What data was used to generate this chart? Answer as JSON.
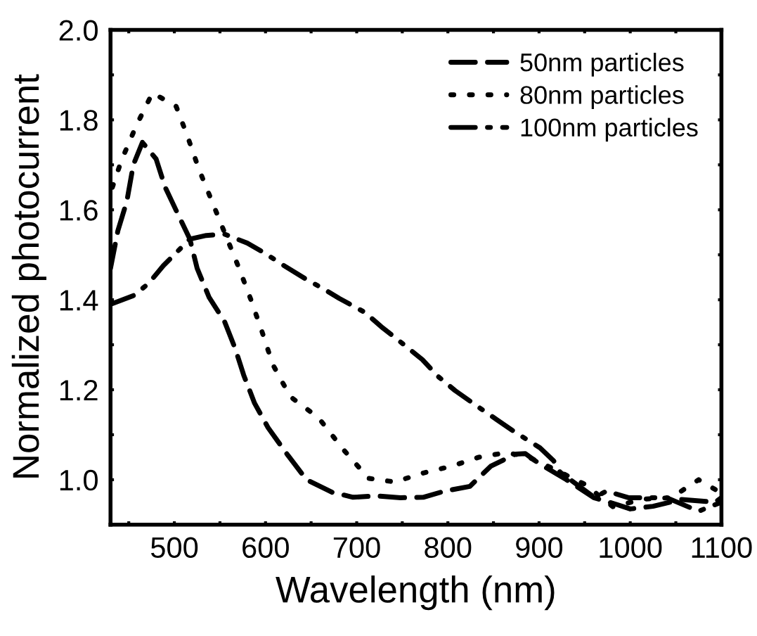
{
  "chart_data": {
    "type": "line",
    "xlabel": "Wavelength (nm)",
    "ylabel": "Normalized photocurrent",
    "xlim": [
      430,
      1100
    ],
    "ylim": [
      0.9,
      2.0
    ],
    "xticks": [
      {
        "value": 450,
        "label": null
      },
      500,
      {
        "value": 550,
        "label": null
      },
      600,
      {
        "value": 650,
        "label": null
      },
      700,
      {
        "value": 750,
        "label": null
      },
      800,
      {
        "value": 850,
        "label": null
      },
      900,
      {
        "value": 950,
        "label": null
      },
      1000,
      {
        "value": 1050,
        "label": null
      },
      1100
    ],
    "yticks": [
      {
        "value": 1.0,
        "label": "1.0"
      },
      {
        "value": 1.1,
        "label": null
      },
      1.2,
      {
        "value": 1.3,
        "label": null
      },
      1.4,
      {
        "value": 1.5,
        "label": null
      },
      1.6,
      {
        "value": 1.7,
        "label": null
      },
      1.8,
      {
        "value": 1.9,
        "label": null
      },
      {
        "value": 2.0,
        "label": "2.0"
      }
    ],
    "legend": "top right",
    "grid": false,
    "series": [
      {
        "name": "50nm particles",
        "color": "#000000",
        "line_style": "dashed",
        "x": [
          430,
          438,
          448,
          455,
          465,
          480,
          490,
          504,
          517,
          525,
          538,
          555,
          567,
          576,
          588,
          603,
          625,
          645,
          673,
          696,
          722,
          748,
          773,
          797,
          824,
          847,
          874,
          885,
          895,
          905,
          930,
          960,
          985,
          1000,
          1025,
          1056,
          1093,
          1100
        ],
        "values": [
          1.47,
          1.553,
          1.62,
          1.7,
          1.75,
          1.713,
          1.65,
          1.59,
          1.535,
          1.47,
          1.406,
          1.352,
          1.29,
          1.233,
          1.17,
          1.115,
          1.053,
          1.0,
          0.972,
          0.961,
          0.964,
          0.96,
          0.961,
          0.975,
          0.985,
          1.03,
          1.057,
          1.058,
          1.043,
          1.03,
          1.0,
          0.96,
          0.945,
          0.935,
          0.941,
          0.956,
          0.95,
          0.96
        ]
      },
      {
        "name": "80nm particles",
        "color": "#000000",
        "line_style": "dotted",
        "x": [
          432,
          442,
          458,
          476,
          502,
          515,
          527,
          542,
          571,
          584,
          596,
          608,
          627,
          658,
          685,
          713,
          742,
          773,
          804,
          834,
          863,
          885,
          900,
          920,
          950,
          981,
          1015,
          1045,
          1075,
          1100
        ],
        "values": [
          1.65,
          1.71,
          1.786,
          1.86,
          1.83,
          1.76,
          1.69,
          1.615,
          1.47,
          1.4,
          1.33,
          1.256,
          1.185,
          1.138,
          1.068,
          1.003,
          0.995,
          1.015,
          1.03,
          1.05,
          1.06,
          1.053,
          1.04,
          1.02,
          0.99,
          0.94,
          0.957,
          0.96,
          1.0,
          0.97
        ]
      },
      {
        "name": "100nm particles",
        "color": "#000000",
        "line_style": "dashdot",
        "x": [
          430,
          456,
          472,
          488,
          517,
          535,
          555,
          580,
          599,
          617,
          645,
          663,
          681,
          709,
          727,
          744,
          772,
          789,
          808,
          836,
          854,
          872,
          901,
          916,
          923,
          961,
          974,
          998,
          1040,
          1075,
          1100
        ],
        "values": [
          1.39,
          1.41,
          1.437,
          1.476,
          1.535,
          1.543,
          1.546,
          1.526,
          1.504,
          1.48,
          1.445,
          1.425,
          1.403,
          1.372,
          1.34,
          1.313,
          1.267,
          1.23,
          1.198,
          1.158,
          1.133,
          1.108,
          1.071,
          1.042,
          1.017,
          0.96,
          0.975,
          0.96,
          0.96,
          0.93,
          0.95
        ]
      }
    ]
  }
}
